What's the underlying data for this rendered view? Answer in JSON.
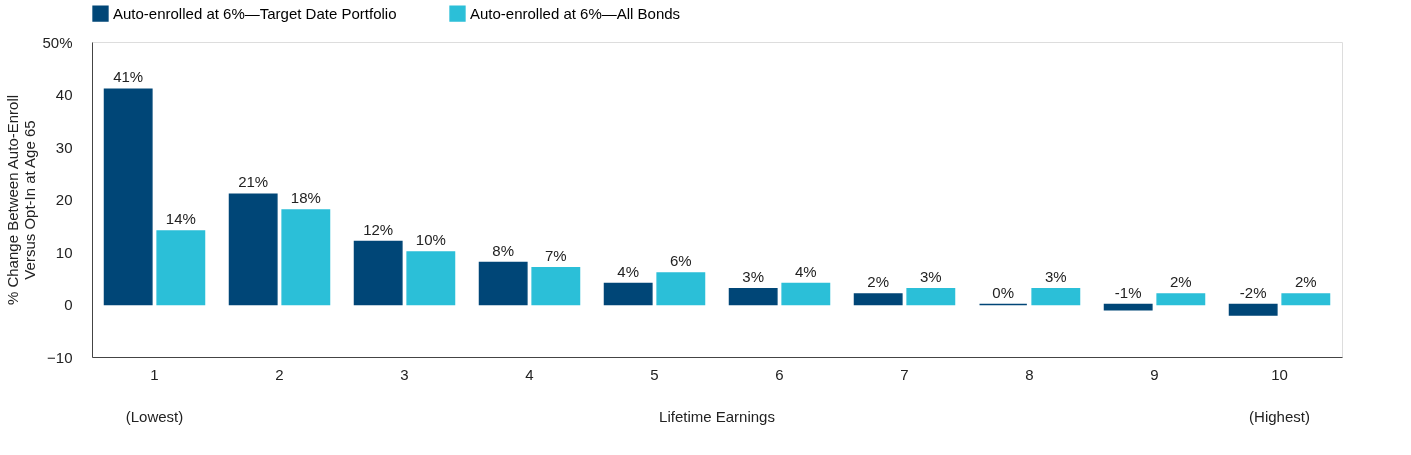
{
  "chart_data": {
    "type": "bar",
    "xlabel": "Lifetime Earnings",
    "ylabel": "% Change Between Auto-Enroll\nVersus Opt-In at Age 65",
    "categories": [
      "1",
      "2",
      "3",
      "4",
      "5",
      "6",
      "7",
      "8",
      "9",
      "10"
    ],
    "series": [
      {
        "name": "Auto-enrolled at 6%—Target Date Portfolio",
        "color": "#004677",
        "values": [
          41,
          21,
          12,
          8,
          4,
          3,
          2,
          0,
          -1,
          -2
        ],
        "value_labels": [
          "41%",
          "21%",
          "12%",
          "8%",
          "4%",
          "3%",
          "2%",
          "0%",
          "-1%",
          "-2%"
        ]
      },
      {
        "name": "Auto-enrolled at 6%—All Bonds",
        "color": "#2bbfd8",
        "values": [
          14,
          18,
          10,
          7,
          6,
          4,
          3,
          3,
          2,
          2
        ],
        "value_labels": [
          "14%",
          "18%",
          "10%",
          "7%",
          "6%",
          "4%",
          "3%",
          "3%",
          "2%",
          "2%"
        ]
      }
    ],
    "ylim": [
      -10,
      50
    ],
    "yticks": [
      -10,
      0,
      10,
      20,
      30,
      40,
      {
        "value": 50,
        "label": "50%"
      }
    ],
    "annotations": [
      "(Lowest)",
      "(Highest)"
    ],
    "grid": false,
    "legend": "top"
  }
}
